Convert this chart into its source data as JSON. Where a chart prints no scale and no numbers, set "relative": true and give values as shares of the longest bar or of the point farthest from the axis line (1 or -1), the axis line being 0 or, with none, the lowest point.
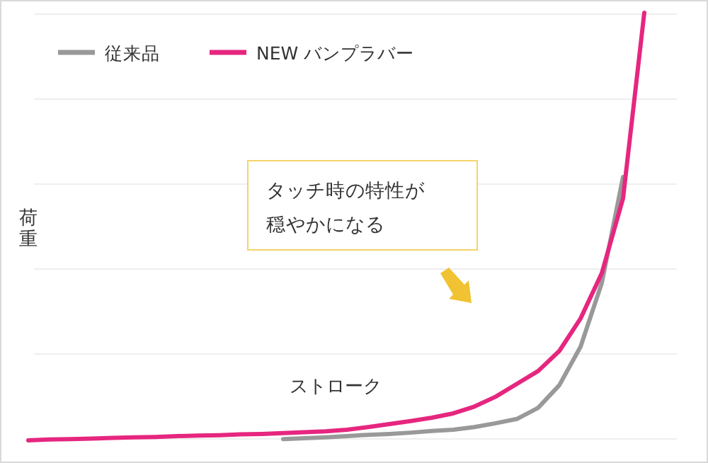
{
  "chart_data": {
    "type": "line",
    "relative": true,
    "xlabel": "ストローク",
    "ylabel": "荷重",
    "grid": "y",
    "legend": "top left",
    "marker": "none",
    "line_style": "solid",
    "categories": [
      null,
      null,
      null,
      null,
      null,
      null,
      null,
      null,
      null,
      null,
      null,
      null,
      null,
      null,
      null,
      null,
      null,
      null,
      null,
      null,
      null,
      null,
      null,
      null,
      null,
      null,
      null,
      null,
      null,
      null
    ],
    "series": [
      {
        "name": "従来品",
        "color": "#999999",
        "values": [
          null,
          null,
          null,
          null,
          null,
          null,
          null,
          null,
          null,
          null,
          null,
          null,
          0.003,
          0.005,
          0.007,
          0.01,
          0.013,
          0.015,
          0.018,
          0.022,
          0.025,
          0.031,
          0.04,
          0.05,
          0.076,
          0.129,
          0.219,
          0.368,
          0.616,
          null
        ]
      },
      {
        "name": "NEW バンプラバー",
        "color": "#e6267f",
        "values": [
          0,
          0.002,
          0.003,
          0.004,
          0.006,
          0.007,
          0.008,
          0.01,
          0.011,
          0.012,
          0.014,
          0.015,
          0.017,
          0.019,
          0.021,
          0.025,
          0.031,
          0.038,
          0.045,
          0.053,
          0.063,
          0.079,
          0.102,
          0.132,
          0.162,
          0.209,
          0.285,
          0.391,
          0.566,
          1
        ]
      }
    ],
    "annotations": [
      "タッチ時の特性が穏やかになる"
    ]
  }
}
